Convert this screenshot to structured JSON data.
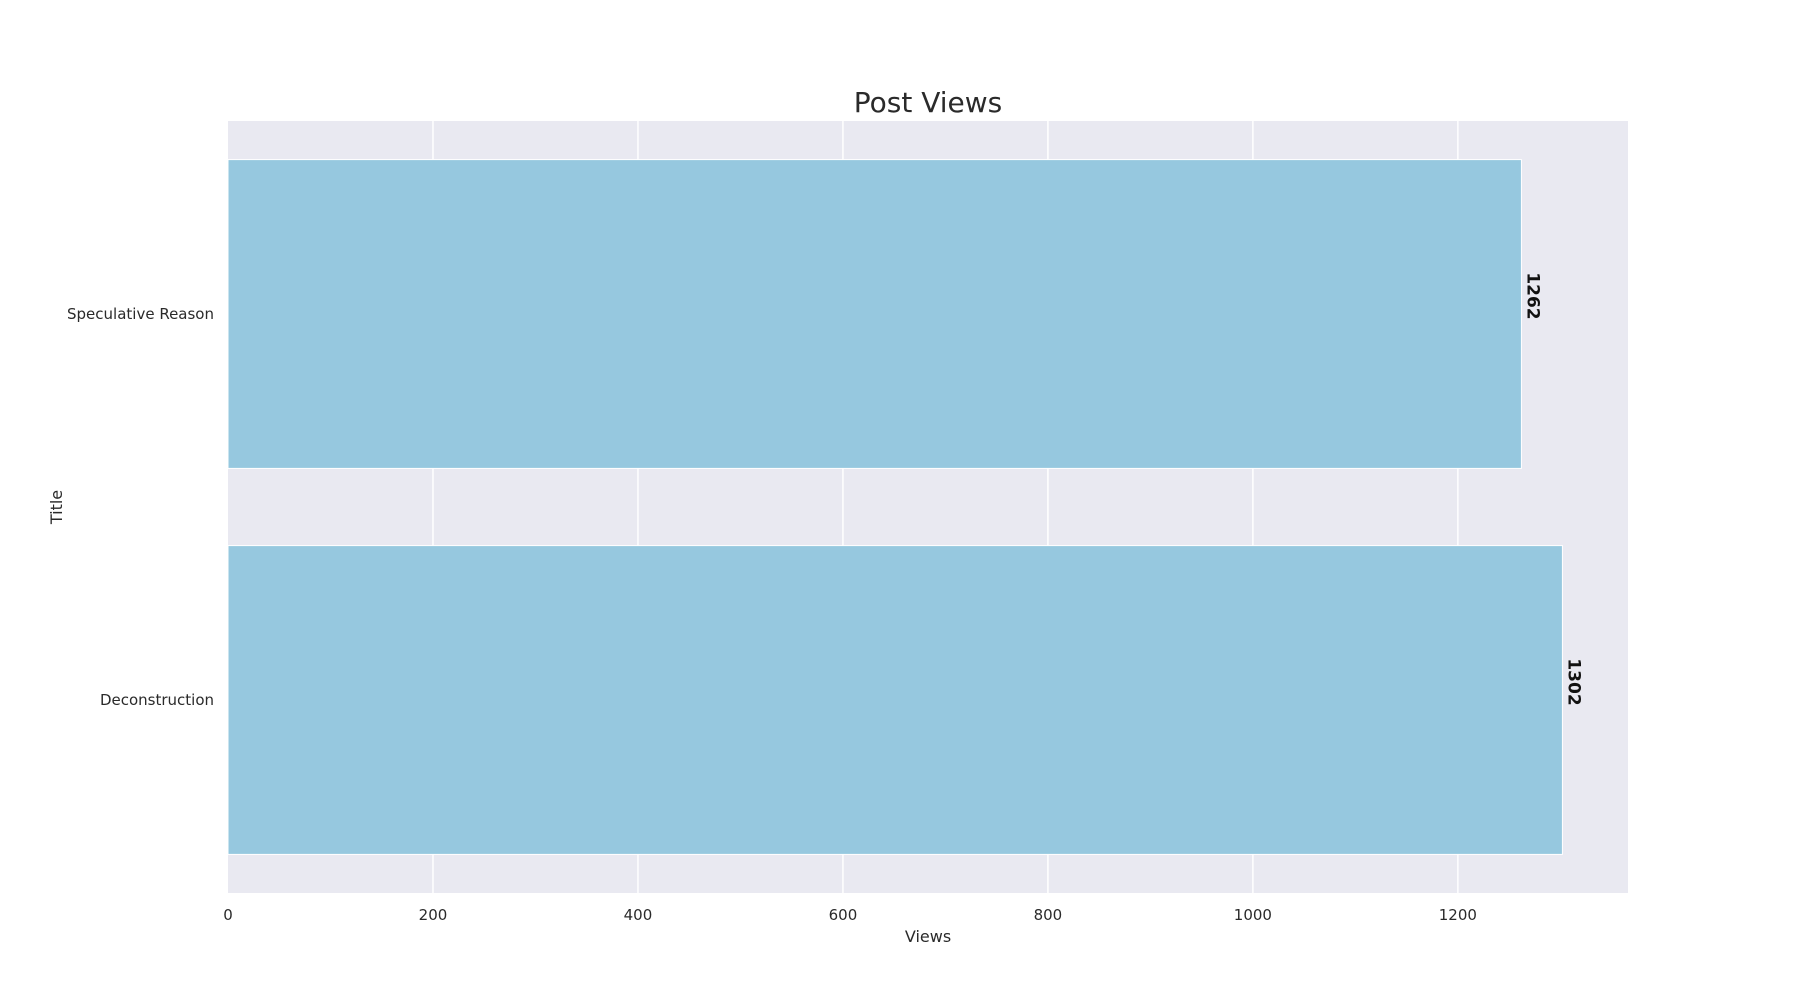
{
  "chart_data": {
    "type": "bar",
    "orientation": "horizontal",
    "title": "Post Views",
    "xlabel": "Views",
    "ylabel": "Title",
    "categories": [
      "Speculative Reason",
      "Deconstruction"
    ],
    "values": [
      1262,
      1302
    ],
    "xlim": [
      0,
      1366
    ],
    "x_ticks": [
      0,
      200,
      400,
      600,
      800,
      1000,
      1200
    ],
    "grid": true,
    "legend": "none",
    "colors": {
      "bar": "#96c8df",
      "bar_edge": "#ffffff",
      "plot_background": "#e9e9f1",
      "grid": "#ffffff"
    }
  }
}
